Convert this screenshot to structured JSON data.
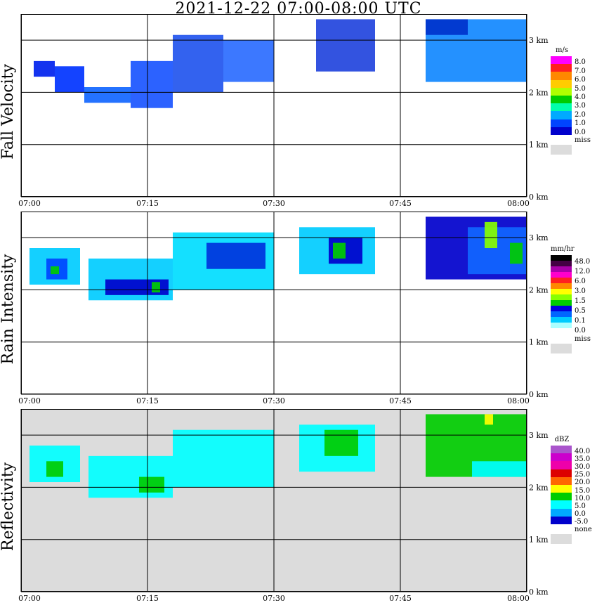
{
  "title": "2021-12-22   07:00-08:00 UTC",
  "chart_data": [
    {
      "type": "heatmap",
      "title": "Fall Velocity",
      "x_ticks": [
        "07:00",
        "07:15",
        "07:30",
        "07:45",
        "08:00"
      ],
      "y_ticks": [
        "0 km",
        "1 km",
        "2 km",
        "3 km"
      ],
      "ylim_km": [
        0,
        3.5
      ],
      "xlim": [
        "07:00",
        "08:00"
      ],
      "grid": true,
      "legend": {
        "unit": "m/s",
        "levels": [
          "8.0",
          "7.0",
          "6.0",
          "5.0",
          "4.0",
          "3.0",
          "2.0",
          "1.0",
          "0.0"
        ],
        "colors": [
          "#ff00ff",
          "#ff2020",
          "#ff8800",
          "#ffcc00",
          "#b0ff00",
          "#00cc00",
          "#00ffaa",
          "#00aaff",
          "#0044ff",
          "#0000cc"
        ],
        "missing_label": "miss",
        "missing_color": "#dcdcdc"
      },
      "echoes": [
        {
          "t_start": 1.5,
          "t_end": 4.0,
          "h_bottom": 2.3,
          "h_top": 2.6,
          "color": "#0022ee"
        },
        {
          "t_start": 4.0,
          "t_end": 7.5,
          "h_bottom": 2.0,
          "h_top": 2.5,
          "color": "#0033ff"
        },
        {
          "t_start": 7.5,
          "t_end": 13.0,
          "h_bottom": 1.8,
          "h_top": 2.1,
          "color": "#1166ff"
        },
        {
          "t_start": 13.0,
          "t_end": 18.0,
          "h_bottom": 1.7,
          "h_top": 2.6,
          "color": "#1a55ff"
        },
        {
          "t_start": 18.0,
          "t_end": 24.0,
          "h_bottom": 2.0,
          "h_top": 3.1,
          "color": "#2255ee"
        },
        {
          "t_start": 24.0,
          "t_end": 30.0,
          "h_bottom": 2.2,
          "h_top": 3.0,
          "color": "#2b6cff"
        },
        {
          "t_start": 35.0,
          "t_end": 42.0,
          "h_bottom": 2.4,
          "h_top": 3.4,
          "color": "#2244dd"
        },
        {
          "t_start": 48.0,
          "t_end": 60.0,
          "h_bottom": 2.2,
          "h_top": 3.4,
          "color": "#1188ff"
        },
        {
          "t_start": 48.0,
          "t_end": 53.0,
          "h_bottom": 3.1,
          "h_top": 3.4,
          "color": "#0033cc"
        }
      ]
    },
    {
      "type": "heatmap",
      "title": "Rain Intensity",
      "x_ticks": [
        "07:00",
        "07:15",
        "07:30",
        "07:45",
        "08:00"
      ],
      "y_ticks": [
        "0 km",
        "1 km",
        "2 km",
        "3 km"
      ],
      "ylim_km": [
        0,
        3.5
      ],
      "xlim": [
        "07:00",
        "08:00"
      ],
      "grid": true,
      "legend": {
        "unit": "mm/hr",
        "levels": [
          "48.0",
          "12.0",
          "6.0",
          "3.0",
          "1.5",
          "0.5",
          "0.1",
          "0.0"
        ],
        "colors": [
          "#000000",
          "#440044",
          "#aa00aa",
          "#ff00cc",
          "#ff2020",
          "#ff8800",
          "#ffff00",
          "#88ff00",
          "#00cc00",
          "#0000dd",
          "#0066ff",
          "#00ccff",
          "#aaffff",
          "#ffffff"
        ],
        "missing_label": "miss",
        "missing_color": "#dcdcdc"
      },
      "echoes": [
        {
          "t_start": 1.0,
          "t_end": 7.0,
          "h_bottom": 2.1,
          "h_top": 2.8,
          "color": "#00ccff"
        },
        {
          "t_start": 3.0,
          "t_end": 5.5,
          "h_bottom": 2.2,
          "h_top": 2.6,
          "color": "#0044ff"
        },
        {
          "t_start": 8.0,
          "t_end": 18.0,
          "h_bottom": 1.8,
          "h_top": 2.6,
          "color": "#00ccff"
        },
        {
          "t_start": 10.0,
          "t_end": 17.5,
          "h_bottom": 1.9,
          "h_top": 2.2,
          "color": "#0000cc"
        },
        {
          "t_start": 18.0,
          "t_end": 30.0,
          "h_bottom": 2.0,
          "h_top": 3.1,
          "color": "#00ddff"
        },
        {
          "t_start": 22.0,
          "t_end": 29.0,
          "h_bottom": 2.4,
          "h_top": 2.9,
          "color": "#0033dd"
        },
        {
          "t_start": 33.0,
          "t_end": 42.0,
          "h_bottom": 2.3,
          "h_top": 3.2,
          "color": "#00ccff"
        },
        {
          "t_start": 36.5,
          "t_end": 40.5,
          "h_bottom": 2.5,
          "h_top": 3.0,
          "color": "#0000cc"
        },
        {
          "t_start": 48.0,
          "t_end": 60.0,
          "h_bottom": 2.2,
          "h_top": 3.4,
          "color": "#0000cc"
        },
        {
          "t_start": 53.0,
          "t_end": 60.0,
          "h_bottom": 2.3,
          "h_top": 3.2,
          "color": "#1166ff"
        },
        {
          "t_start": 3.5,
          "t_end": 4.5,
          "h_bottom": 2.3,
          "h_top": 2.45,
          "color": "#00cc00"
        },
        {
          "t_start": 15.5,
          "t_end": 16.5,
          "h_bottom": 1.95,
          "h_top": 2.15,
          "color": "#00cc00"
        },
        {
          "t_start": 37.0,
          "t_end": 38.5,
          "h_bottom": 2.6,
          "h_top": 2.9,
          "color": "#00cc00"
        },
        {
          "t_start": 55.0,
          "t_end": 56.5,
          "h_bottom": 2.8,
          "h_top": 3.3,
          "color": "#88ff00"
        },
        {
          "t_start": 58.0,
          "t_end": 59.5,
          "h_bottom": 2.5,
          "h_top": 2.9,
          "color": "#00cc00"
        }
      ]
    },
    {
      "type": "heatmap",
      "title": "Reflectivity",
      "x_ticks": [
        "07:00",
        "07:15",
        "07:30",
        "07:45",
        "08:00"
      ],
      "y_ticks": [
        "0 km",
        "1 km",
        "2 km",
        "3 km"
      ],
      "ylim_km": [
        0,
        3.5
      ],
      "xlim": [
        "07:00",
        "08:00"
      ],
      "grid": true,
      "background_color": "#dcdcdc",
      "legend": {
        "unit": "dBZ",
        "levels": [
          "40.0",
          "35.0",
          "30.0",
          "25.0",
          "20.0",
          "15.0",
          "10.0",
          "5.0",
          "0.0",
          "-5.0"
        ],
        "colors": [
          "#aa55cc",
          "#cc00cc",
          "#ee00aa",
          "#dd0000",
          "#ff6600",
          "#ffff00",
          "#00cc00",
          "#00ffff",
          "#00aaff",
          "#0000cc"
        ],
        "missing_label": "none",
        "missing_color": "#dcdcdc"
      },
      "echoes": [
        {
          "t_start": 1.0,
          "t_end": 7.0,
          "h_bottom": 2.1,
          "h_top": 2.8,
          "color": "#00ffff"
        },
        {
          "t_start": 3.0,
          "t_end": 5.0,
          "h_bottom": 2.2,
          "h_top": 2.5,
          "color": "#00cc00"
        },
        {
          "t_start": 8.0,
          "t_end": 18.0,
          "h_bottom": 1.8,
          "h_top": 2.6,
          "color": "#00ffff"
        },
        {
          "t_start": 14.0,
          "t_end": 17.0,
          "h_bottom": 1.9,
          "h_top": 2.2,
          "color": "#00cc00"
        },
        {
          "t_start": 18.0,
          "t_end": 30.0,
          "h_bottom": 2.0,
          "h_top": 3.1,
          "color": "#00ffff"
        },
        {
          "t_start": 33.0,
          "t_end": 42.0,
          "h_bottom": 2.3,
          "h_top": 3.2,
          "color": "#00ffff"
        },
        {
          "t_start": 36.0,
          "t_end": 40.0,
          "h_bottom": 2.6,
          "h_top": 3.1,
          "color": "#00cc00"
        },
        {
          "t_start": 48.0,
          "t_end": 60.0,
          "h_bottom": 2.2,
          "h_top": 3.4,
          "color": "#00cc00"
        },
        {
          "t_start": 53.5,
          "t_end": 60.0,
          "h_bottom": 2.2,
          "h_top": 2.5,
          "color": "#00ffff"
        },
        {
          "t_start": 55.0,
          "t_end": 56.0,
          "h_bottom": 3.2,
          "h_top": 3.4,
          "color": "#ffff00"
        }
      ]
    }
  ]
}
